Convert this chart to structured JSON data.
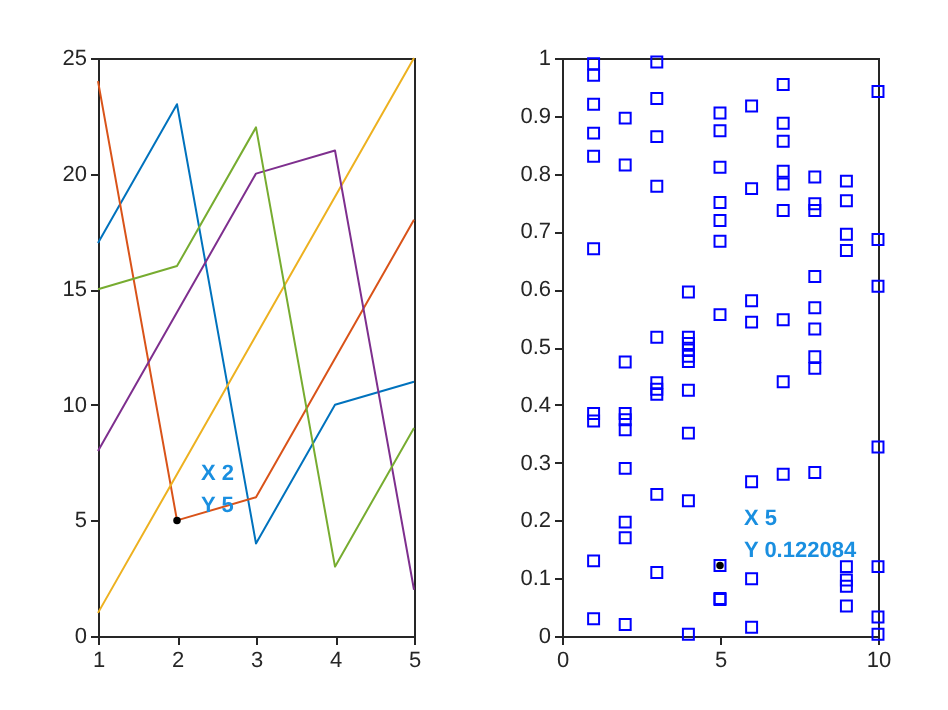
{
  "chart_data": [
    {
      "type": "line",
      "x": [
        1,
        2,
        3,
        4,
        5
      ],
      "xlim": [
        1,
        5
      ],
      "xticks": [
        1,
        2,
        3,
        4,
        5
      ],
      "ylim": [
        0,
        25
      ],
      "yticks": [
        0,
        5,
        10,
        15,
        20,
        25
      ],
      "grid": false,
      "marker": "none",
      "line_style": "solid",
      "series": [
        {
          "color": "#0072bd",
          "values": [
            17,
            23,
            4,
            10,
            11
          ]
        },
        {
          "color": "#d95319",
          "values": [
            24,
            5,
            6,
            12,
            18
          ]
        },
        {
          "color": "#edb120",
          "values": [
            1,
            7,
            13,
            19,
            25
          ]
        },
        {
          "color": "#7e2f8e",
          "values": [
            8,
            14,
            20,
            21,
            2
          ]
        },
        {
          "color": "#77ac30",
          "values": [
            15,
            16,
            22,
            3,
            9
          ]
        }
      ],
      "annotations": [
        {
          "text": "X 2\nY 5",
          "x": 2,
          "y": 5
        }
      ]
    },
    {
      "type": "scatter",
      "xlim": [
        0,
        10
      ],
      "xticks": [
        0,
        5,
        10
      ],
      "ylim": [
        0,
        1
      ],
      "yticks": [
        0,
        0.1,
        0.2,
        0.3,
        0.4,
        0.5,
        0.6,
        0.7,
        0.8,
        0.9,
        1
      ],
      "grid": false,
      "marker": "square",
      "series": [
        {
          "color": "#0000ff",
          "x": [
            1,
            1,
            1,
            1,
            1,
            1,
            1,
            1,
            1,
            1,
            2,
            2,
            2,
            2,
            2,
            2,
            2,
            2,
            2,
            2,
            3,
            3,
            3,
            3,
            3,
            3,
            3,
            3,
            3,
            3,
            4,
            4,
            4,
            4,
            4,
            4,
            4,
            4,
            4,
            4,
            5,
            5,
            5,
            5,
            5,
            5,
            5,
            5,
            5,
            5,
            6,
            6,
            6,
            6,
            6,
            6,
            6,
            7,
            7,
            7,
            7,
            7,
            7,
            7,
            7,
            7,
            8,
            8,
            8,
            8,
            8,
            8,
            8,
            8,
            8,
            9,
            9,
            9,
            9,
            9,
            9,
            9,
            9,
            10,
            10,
            10,
            10,
            10,
            10,
            10
          ],
          "values": [
            0.99,
            0.97,
            0.92,
            0.87,
            0.83,
            0.67,
            0.385,
            0.372,
            0.13,
            0.03,
            0.896,
            0.815,
            0.474,
            0.385,
            0.374,
            0.357,
            0.29,
            0.197,
            0.17,
            0.02,
            0.993,
            0.93,
            0.864,
            0.778,
            0.517,
            0.438,
            0.427,
            0.418,
            0.245,
            0.11,
            0.595,
            0.517,
            0.506,
            0.495,
            0.484,
            0.475,
            0.425,
            0.351,
            0.234,
            0.003,
            0.905,
            0.874,
            0.811,
            0.75,
            0.719,
            0.683,
            0.556,
            0.122084,
            0.065,
            0.063,
            0.917,
            0.774,
            0.58,
            0.543,
            0.267,
            0.099,
            0.015,
            0.954,
            0.887,
            0.856,
            0.804,
            0.782,
            0.736,
            0.547,
            0.44,
            0.28,
            0.794,
            0.748,
            0.736,
            0.622,
            0.568,
            0.531,
            0.483,
            0.463,
            0.283,
            0.787,
            0.753,
            0.695,
            0.667,
            0.12,
            0.097,
            0.086,
            0.052,
            0.942,
            0.686,
            0.605,
            0.327,
            0.12,
            0.033,
            0.003
          ]
        }
      ],
      "annotations": [
        {
          "text": "X 5\nY 0.122084",
          "x": 5,
          "y": 0.122084
        }
      ]
    }
  ]
}
